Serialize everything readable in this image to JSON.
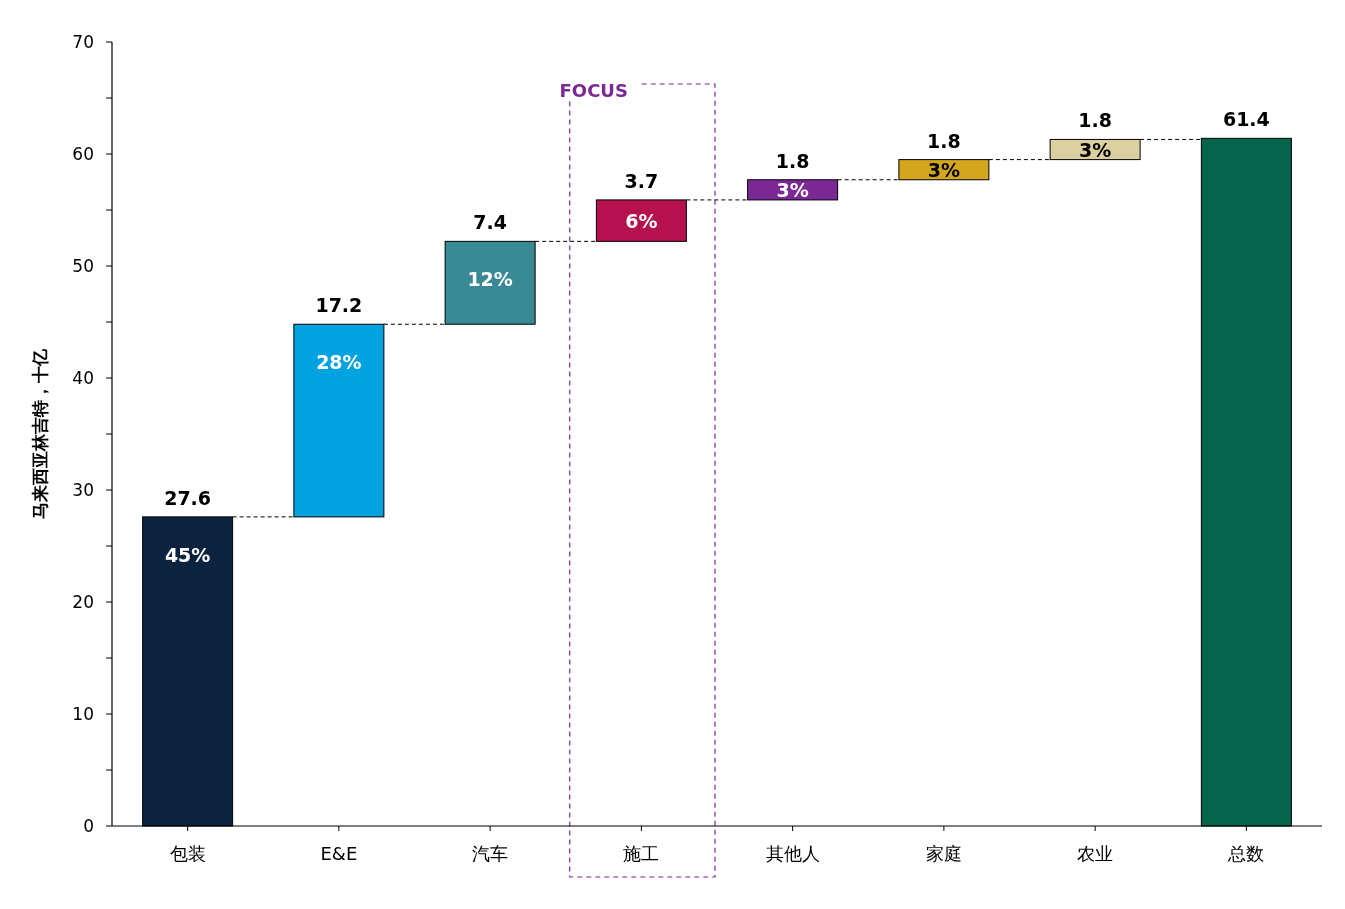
{
  "chart_data": {
    "type": "bar",
    "ylabel": "马来西亚林吉特，十亿",
    "categories": [
      "包装",
      "E&E",
      "汽车",
      "施工",
      "其他人",
      "家庭",
      "农业",
      "总数"
    ],
    "values": [
      27.6,
      17.2,
      7.4,
      3.7,
      1.8,
      1.8,
      1.8,
      61.4
    ],
    "base": [
      0,
      27.6,
      44.8,
      52.2,
      55.9,
      57.7,
      59.5,
      0
    ],
    "colors": [
      "#0c2340",
      "#00a3e0",
      "#3a8a96",
      "#b5114f",
      "#7b2894",
      "#d4a61e",
      "#dccfa0",
      "#04654a"
    ],
    "data_labels": true,
    "ylim": [
      0,
      70
    ],
    "yticks": [
      0,
      {
        "value": 5,
        "label": null
      },
      10,
      {
        "value": 15,
        "label": null
      },
      20,
      {
        "value": 25,
        "label": null
      },
      30,
      {
        "value": 35,
        "label": null
      },
      40,
      {
        "value": 45,
        "label": null
      },
      50,
      {
        "value": 55,
        "label": null
      },
      60,
      {
        "value": 65,
        "label": null
      },
      70
    ],
    "annotations": [
      {
        "text": "45%",
        "x": "包装",
        "y": 27.6
      },
      {
        "text": "28%",
        "x": "E&E",
        "y": 44.8
      },
      {
        "text": "12%",
        "x": "汽车",
        "y": 52.2
      },
      {
        "text": "6%",
        "x": "施工",
        "y": 55.9
      },
      {
        "text": "3%",
        "x": "其他人",
        "y": 57.7
      },
      {
        "text": "3%",
        "x": "家庭",
        "y": 59.5
      },
      {
        "text": "3%",
        "x": "农业",
        "y": 61.3
      },
      "FOCUS"
    ],
    "grid": false
  }
}
